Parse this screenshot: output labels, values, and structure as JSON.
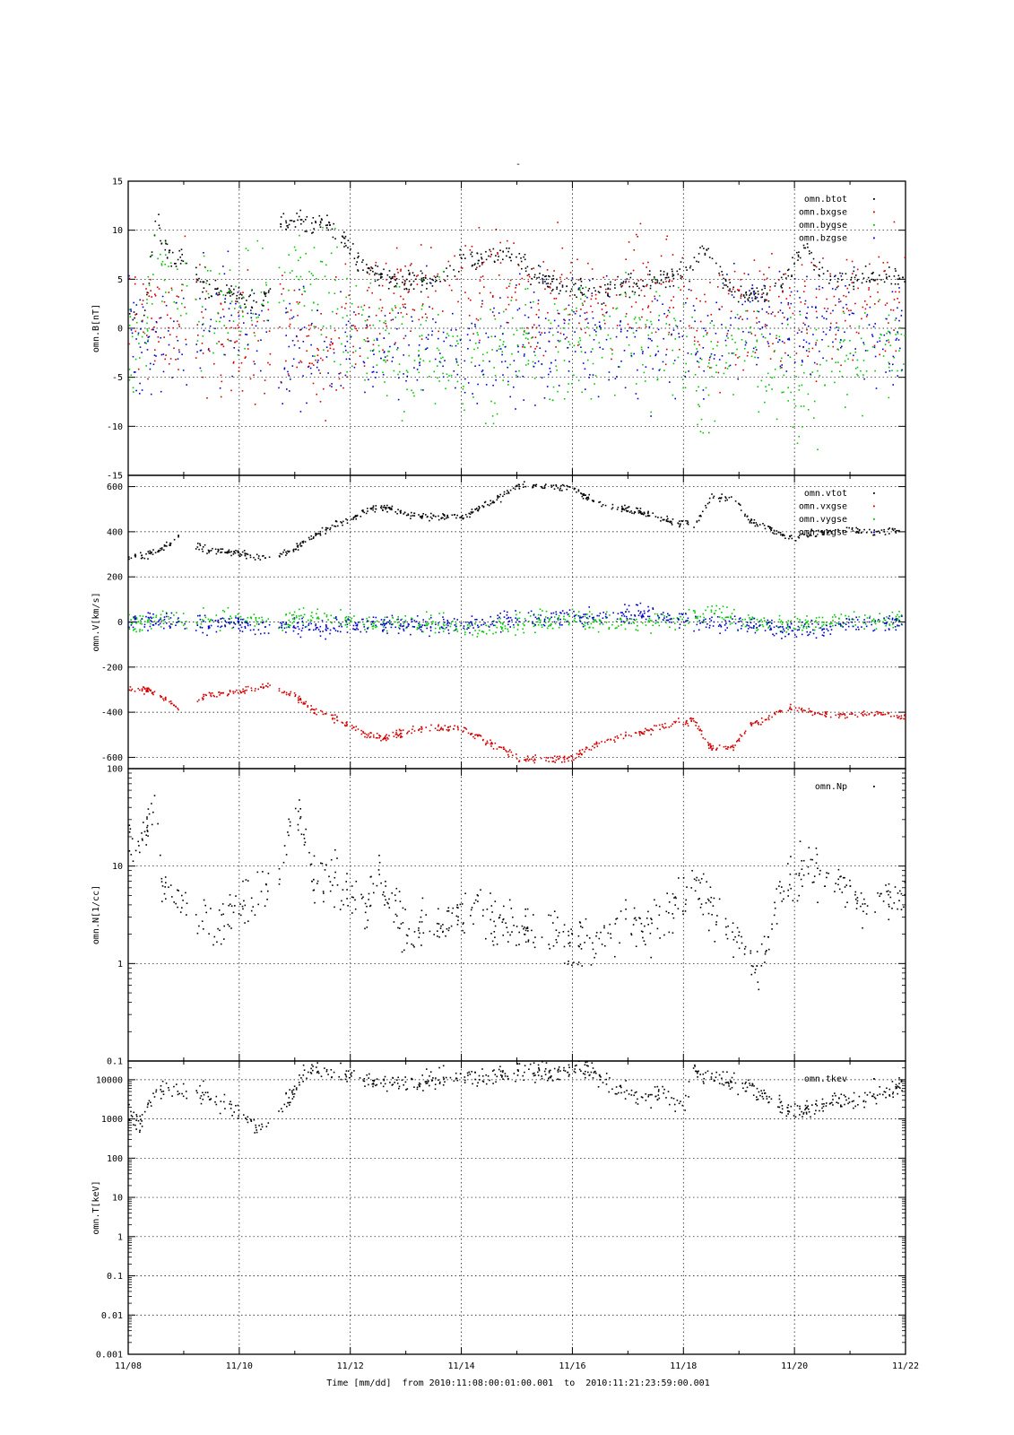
{
  "title": "-",
  "x_axis_title": "Time [mm/dd]  from 2010:11:08:00:01:00.001  to  2010:11:21:23:59:00.001",
  "x_ticks": [
    "11/08",
    "11/10",
    "11/12",
    "11/14",
    "11/16",
    "11/18",
    "11/20",
    "11/22"
  ],
  "colors": {
    "black": "#000000",
    "red": "#d40000",
    "green": "#00c800",
    "blue": "#0000cc",
    "grid": "#000000"
  },
  "chart_data": [
    {
      "type": "scatter",
      "ylabel": "omn.B[nT]",
      "scale": "linear",
      "ylim": [
        -15,
        15
      ],
      "y_ticks": [
        "-15",
        "-10",
        "-5",
        "0",
        "5",
        "10",
        "15"
      ],
      "y_tick_values": [
        -15,
        -10,
        -5,
        0,
        5,
        10,
        15
      ],
      "xlim": [
        8,
        22
      ],
      "grid": true,
      "legend_position": "top-right",
      "series": [
        {
          "name": "omn.btot",
          "color": "#000000",
          "noise": 0.5,
          "x": [
            8.0,
            8.3,
            8.5,
            8.6,
            8.8,
            9.0,
            9.3,
            9.6,
            9.9,
            10.2,
            10.5,
            10.7,
            10.9,
            11.1,
            11.3,
            11.5,
            11.7,
            11.9,
            12.1,
            12.4,
            12.7,
            13.0,
            13.5,
            14.0,
            14.5,
            14.8,
            15.0,
            15.3,
            15.6,
            16.0,
            16.5,
            17.0,
            17.5,
            17.8,
            18.1,
            18.3,
            18.6,
            18.9,
            19.2,
            19.5,
            19.8,
            20.0,
            20.2,
            20.4,
            20.7,
            21.0,
            21.5,
            22.0
          ],
          "y": [
            1.5,
            2.0,
            11.5,
            9.0,
            7.0,
            7.5,
            4.5,
            4.0,
            3.5,
            3.0,
            3.0,
            11.0,
            10.5,
            11.5,
            10.0,
            11.0,
            9.5,
            9.0,
            7.0,
            6.0,
            5.0,
            4.8,
            5.0,
            7.0,
            7.5,
            7.5,
            7.0,
            5.5,
            4.5,
            4.0,
            4.0,
            4.5,
            5.0,
            5.5,
            6.0,
            8.5,
            6.0,
            3.5,
            3.5,
            3.5,
            5.0,
            7.0,
            8.5,
            6.0,
            5.0,
            5.0,
            5.5,
            5.0
          ]
        },
        {
          "name": "omn.bxgse",
          "color": "#d40000",
          "noise": 3.0,
          "x": [
            8.0,
            8.3,
            8.5,
            8.8,
            9.0,
            9.3,
            9.6,
            10.0,
            10.5,
            10.7,
            11.0,
            11.5,
            12.0,
            12.5,
            13.0,
            13.5,
            14.0,
            14.5,
            15.0,
            15.5,
            16.0,
            16.5,
            17.0,
            17.5,
            18.0,
            18.5,
            19.0,
            19.5,
            20.0,
            20.5,
            21.0,
            21.5,
            22.0
          ],
          "y": [
            1.5,
            1.0,
            2.0,
            -2.0,
            3.0,
            1.0,
            -1.5,
            -2.0,
            -2.5,
            2.0,
            -1.0,
            -3.0,
            0.0,
            2.0,
            3.0,
            3.5,
            4.5,
            5.0,
            4.0,
            3.0,
            3.0,
            3.0,
            3.5,
            3.5,
            3.5,
            0.0,
            2.0,
            3.0,
            2.5,
            1.0,
            3.0,
            3.0,
            3.0
          ]
        },
        {
          "name": "omn.bygse",
          "color": "#00c800",
          "noise": 3.0,
          "x": [
            8.0,
            8.3,
            8.5,
            8.8,
            9.0,
            9.3,
            9.6,
            10.0,
            10.5,
            10.7,
            11.0,
            11.5,
            12.0,
            12.5,
            13.0,
            13.5,
            14.0,
            14.5,
            15.0,
            15.5,
            16.0,
            16.5,
            17.0,
            17.5,
            18.0,
            18.3,
            18.6,
            19.0,
            19.5,
            20.0,
            20.2,
            20.5,
            21.0,
            21.5,
            22.0
          ],
          "y": [
            -1.0,
            -1.0,
            8.0,
            3.0,
            3.5,
            3.0,
            2.5,
            2.0,
            2.5,
            5.0,
            4.0,
            3.0,
            0.0,
            -1.0,
            -2.0,
            -2.5,
            -3.0,
            -3.0,
            -2.0,
            -2.0,
            -1.0,
            -1.0,
            -0.5,
            -1.0,
            -2.0,
            -6.0,
            -2.0,
            -1.0,
            -3.5,
            -5.0,
            -7.5,
            -4.0,
            -3.0,
            -1.5,
            -2.0
          ]
        },
        {
          "name": "omn.bzgse",
          "color": "#0000cc",
          "noise": 2.8,
          "x": [
            8.0,
            8.3,
            8.5,
            8.8,
            9.0,
            9.3,
            9.6,
            10.0,
            10.5,
            10.7,
            11.0,
            11.5,
            12.0,
            12.5,
            13.0,
            13.5,
            14.0,
            14.5,
            15.0,
            15.5,
            16.0,
            16.5,
            17.0,
            17.5,
            18.0,
            18.5,
            19.0,
            19.5,
            20.0,
            20.5,
            21.0,
            21.5,
            22.0
          ],
          "y": [
            0.5,
            -0.5,
            -1.0,
            -2.0,
            -1.0,
            0.0,
            0.5,
            0.5,
            0.0,
            -4.0,
            -1.0,
            -3.0,
            -1.0,
            -2.0,
            -2.0,
            -1.0,
            -2.0,
            -1.5,
            -2.0,
            -1.0,
            -1.0,
            -1.0,
            -1.5,
            -1.0,
            -1.5,
            -1.0,
            0.5,
            1.0,
            0.0,
            1.0,
            0.5,
            -1.0,
            -1.5
          ]
        }
      ]
    },
    {
      "type": "scatter",
      "ylabel": "omn.V[km/s]",
      "scale": "linear",
      "ylim": [
        -650,
        650
      ],
      "y_ticks": [
        "-600",
        "-400",
        "-200",
        "0",
        "200",
        "400",
        "600"
      ],
      "y_tick_values": [
        -600,
        -400,
        -200,
        0,
        200,
        400,
        600
      ],
      "xlim": [
        8,
        22
      ],
      "grid": true,
      "legend_position": "top-right",
      "series": [
        {
          "name": "omn.vtot",
          "color": "#000000",
          "noise": 8,
          "x": [
            8.0,
            8.3,
            8.6,
            8.9,
            9.0,
            9.2,
            9.5,
            10.0,
            10.5,
            10.7,
            11.0,
            11.3,
            11.6,
            12.0,
            12.3,
            12.6,
            13.0,
            13.5,
            14.0,
            14.4,
            14.8,
            15.0,
            15.5,
            16.0,
            16.3,
            16.6,
            17.0,
            17.5,
            17.9,
            18.2,
            18.5,
            18.9,
            19.2,
            19.5,
            20.0,
            20.3,
            20.7,
            21.0,
            21.5,
            22.0
          ],
          "y": [
            290,
            295,
            330,
            380,
            null,
            340,
            320,
            305,
            285,
            295,
            330,
            380,
            420,
            460,
            500,
            510,
            480,
            470,
            470,
            520,
            570,
            610,
            605,
            600,
            550,
            520,
            500,
            470,
            440,
            440,
            560,
            550,
            450,
            420,
            370,
            400,
            410,
            410,
            400,
            420
          ]
        },
        {
          "name": "omn.vxgse",
          "color": "#d40000",
          "noise": 8,
          "x": [
            8.0,
            8.3,
            8.6,
            8.9,
            9.0,
            9.2,
            9.5,
            10.0,
            10.5,
            10.7,
            11.0,
            11.3,
            11.6,
            12.0,
            12.3,
            12.6,
            13.0,
            13.5,
            14.0,
            14.4,
            14.8,
            15.0,
            15.5,
            16.0,
            16.3,
            16.6,
            17.0,
            17.5,
            17.9,
            18.2,
            18.5,
            18.9,
            19.2,
            19.5,
            20.0,
            20.3,
            20.7,
            21.0,
            21.5,
            22.0
          ],
          "y": [
            -290,
            -295,
            -330,
            -380,
            null,
            -340,
            -320,
            -305,
            -285,
            -295,
            -330,
            -380,
            -420,
            -460,
            -500,
            -510,
            -480,
            -470,
            -470,
            -520,
            -570,
            -610,
            -605,
            -600,
            -550,
            -520,
            -500,
            -470,
            -440,
            -440,
            -560,
            -550,
            -450,
            -420,
            -370,
            -400,
            -410,
            -410,
            -400,
            -420
          ]
        },
        {
          "name": "omn.vygse",
          "color": "#00c800",
          "noise": 20,
          "x": [
            8.0,
            8.5,
            9.0,
            9.5,
            10.0,
            10.5,
            10.7,
            11.0,
            11.5,
            12.0,
            12.5,
            13.0,
            13.5,
            14.0,
            14.5,
            15.0,
            15.5,
            16.0,
            16.5,
            17.0,
            17.5,
            18.0,
            18.5,
            19.0,
            19.5,
            20.0,
            20.5,
            21.0,
            21.5,
            22.0
          ],
          "y": [
            0,
            20,
            10,
            10,
            15,
            10,
            -10,
            20,
            30,
            10,
            0,
            0,
            -10,
            -20,
            -20,
            -10,
            10,
            15,
            0,
            5,
            10,
            10,
            60,
            0,
            -5,
            -10,
            0,
            5,
            10,
            10
          ]
        },
        {
          "name": "omn.vzgse",
          "color": "#0000cc",
          "noise": 20,
          "x": [
            8.0,
            8.5,
            9.0,
            9.5,
            10.0,
            10.5,
            10.7,
            11.0,
            11.5,
            12.0,
            12.5,
            13.0,
            13.5,
            14.0,
            14.5,
            15.0,
            15.5,
            16.0,
            16.5,
            17.0,
            17.5,
            18.0,
            18.5,
            19.0,
            19.5,
            20.0,
            20.5,
            21.0,
            21.5,
            22.0
          ],
          "y": [
            0,
            10,
            0,
            -10,
            -10,
            -20,
            -20,
            -10,
            -30,
            -10,
            -10,
            -10,
            -10,
            0,
            10,
            20,
            30,
            30,
            30,
            40,
            35,
            10,
            0,
            0,
            -20,
            -30,
            -20,
            -10,
            0,
            5
          ]
        }
      ]
    },
    {
      "type": "scatter",
      "ylabel": "omn.N[1/cc]",
      "scale": "log",
      "ylim": [
        0.1,
        100
      ],
      "y_ticks": [
        "0.1",
        "1",
        "10",
        "100"
      ],
      "y_tick_values": [
        0.1,
        1,
        10,
        100
      ],
      "xlim": [
        8,
        22
      ],
      "grid": true,
      "legend_position": "top-right",
      "series": [
        {
          "name": "omn.Np",
          "color": "#000000",
          "noise": 0.13,
          "x": [
            8.0,
            8.2,
            8.4,
            8.5,
            8.6,
            8.8,
            9.0,
            9.3,
            9.6,
            9.9,
            10.2,
            10.5,
            10.7,
            10.9,
            11.1,
            11.3,
            11.6,
            12.0,
            12.3,
            12.5,
            12.7,
            13.0,
            13.3,
            13.6,
            14.0,
            14.3,
            14.6,
            15.0,
            15.3,
            15.6,
            16.0,
            16.3,
            16.6,
            17.0,
            17.3,
            17.6,
            18.0,
            18.3,
            18.6,
            18.9,
            19.1,
            19.3,
            19.5,
            19.7,
            20.0,
            20.3,
            20.6,
            21.0,
            21.3,
            21.6,
            22.0
          ],
          "y": [
            20,
            17,
            30,
            45,
            6,
            4.5,
            4,
            3,
            2.5,
            4,
            4,
            5.5,
            8,
            25,
            28,
            8,
            7,
            5,
            3.5,
            10,
            4,
            2.5,
            2.3,
            2.5,
            3.5,
            4,
            3,
            2,
            2,
            2.5,
            1.5,
            1.8,
            2,
            2.5,
            2.5,
            2.5,
            5,
            6,
            3,
            2,
            1.5,
            0.8,
            2,
            5,
            8,
            10,
            7,
            6,
            4,
            5,
            4.5
          ]
        }
      ]
    },
    {
      "type": "scatter",
      "ylabel": "omn.T[keV]",
      "scale": "log",
      "ylim": [
        0.001,
        30000
      ],
      "y_ticks": [
        "0.001",
        "0.01",
        "0.1",
        "1",
        "10",
        "100",
        "1000",
        "10000"
      ],
      "y_tick_values": [
        0.001,
        0.01,
        0.1,
        1,
        10,
        100,
        1000,
        10000
      ],
      "xlim": [
        8,
        22
      ],
      "grid": true,
      "legend_position": "top-right",
      "series": [
        {
          "name": "omn.tkev",
          "color": "#000000",
          "noise": 0.12,
          "x": [
            8.0,
            8.2,
            8.4,
            8.6,
            8.9,
            9.2,
            9.5,
            9.8,
            10.1,
            10.3,
            10.5,
            10.7,
            11.0,
            11.2,
            11.4,
            11.8,
            12.2,
            12.6,
            13.0,
            13.5,
            14.0,
            14.5,
            15.0,
            15.5,
            16.0,
            16.3,
            16.6,
            17.0,
            17.3,
            17.6,
            18.0,
            18.2,
            18.4,
            18.8,
            19.2,
            19.6,
            20.0,
            20.3,
            20.7,
            21.0,
            21.4,
            21.8,
            22.0
          ],
          "y": [
            1500,
            900,
            4000,
            6000,
            5000,
            6500,
            3000,
            2500,
            1200,
            600,
            700,
            2000,
            5000,
            20000,
            18000,
            16000,
            12000,
            9000,
            8000,
            9500,
            14000,
            12000,
            18000,
            16000,
            18000,
            20000,
            8000,
            5000,
            4000,
            5000,
            2000,
            20000,
            14000,
            9000,
            6000,
            3000,
            1500,
            2000,
            3000,
            2500,
            4000,
            6000,
            8000
          ]
        }
      ]
    }
  ]
}
